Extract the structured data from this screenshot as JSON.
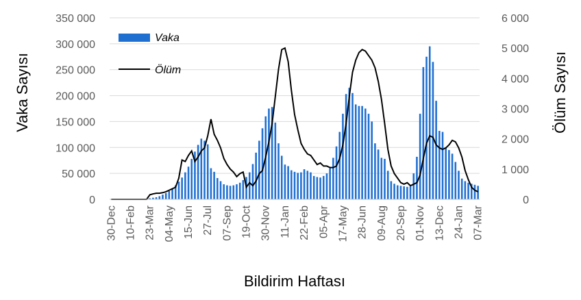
{
  "chart_data": {
    "type": "bar+line",
    "xlabel": "Bildirim Haftası",
    "ylabel_left": "Vaka Sayısı",
    "ylabel_right": "Ölüm Sayısı",
    "ylim_left": [
      0,
      350000
    ],
    "ylim_right": [
      0,
      6000
    ],
    "yticks_left": [
      "0",
      "50 000",
      "100 000",
      "150 000",
      "200 000",
      "250 000",
      "300 000",
      "350 000"
    ],
    "yticks_right": [
      "0",
      "1 000",
      "2 000",
      "3 000",
      "4 000",
      "5 000",
      "6 000"
    ],
    "xtick_labels": [
      "30-Dec",
      "10-Feb",
      "23-Mar",
      "04-May",
      "15-Jun",
      "27-Jul",
      "07-Sep",
      "19-Oct",
      "30-Nov",
      "11-Jan",
      "22-Feb",
      "05-Apr",
      "17-May",
      "28-Jun",
      "09-Aug",
      "20-Sep",
      "01-Nov",
      "13-Dec",
      "24-Jan",
      "07-Mar"
    ],
    "weeks": 115,
    "legend": {
      "placement": "top-left",
      "entries": [
        "Vaka",
        "Ölüm"
      ]
    },
    "colors": {
      "bar": "#1f6fd1",
      "line": "#000000"
    },
    "series": [
      {
        "name": "Vaka",
        "axis": "left",
        "type": "bar",
        "values": [
          0,
          0,
          0,
          0,
          0,
          0,
          0,
          0,
          0,
          0,
          0,
          0,
          2000,
          3000,
          4000,
          6000,
          9000,
          12000,
          16000,
          21000,
          27000,
          34000,
          42000,
          52000,
          63000,
          78000,
          92000,
          105000,
          117000,
          113000,
          106000,
          60000,
          53000,
          41000,
          35000,
          29000,
          27000,
          26000,
          27000,
          29000,
          32000,
          37000,
          43000,
          52000,
          68000,
          90000,
          113000,
          137000,
          160000,
          175000,
          178000,
          148000,
          108000,
          84000,
          67000,
          64000,
          56000,
          53000,
          51000,
          52000,
          58000,
          55000,
          52000,
          45000,
          43000,
          42000,
          45000,
          50000,
          60000,
          80000,
          102000,
          130000,
          165000,
          203000,
          215000,
          205000,
          183000,
          180000,
          180000,
          175000,
          165000,
          150000,
          108000,
          96000,
          80000,
          78000,
          55000,
          35000,
          30000,
          27000,
          26000,
          25000,
          24000,
          25000,
          50000,
          82000,
          165000,
          255000,
          275000,
          295000,
          265000,
          190000,
          132000,
          130000,
          100000,
          95000,
          88000,
          72000,
          55000,
          40000,
          35000,
          32000,
          30000,
          28000,
          26000
        ]
      },
      {
        "name": "Ölüm",
        "axis": "right",
        "type": "line",
        "values": [
          0,
          0,
          0,
          0,
          0,
          0,
          0,
          0,
          0,
          0,
          0,
          0,
          150,
          180,
          200,
          200,
          220,
          250,
          300,
          350,
          400,
          700,
          1300,
          1250,
          1450,
          1600,
          1250,
          1400,
          1600,
          1700,
          2100,
          2650,
          2150,
          1950,
          1700,
          1350,
          1150,
          1000,
          900,
          750,
          850,
          900,
          400,
          550,
          450,
          600,
          850,
          950,
          1400,
          1900,
          2500,
          3400,
          4300,
          4950,
          5000,
          4550,
          3600,
          2800,
          2300,
          1850,
          1650,
          1500,
          1450,
          1300,
          1150,
          1200,
          1100,
          1100,
          1050,
          1050,
          1100,
          1350,
          1800,
          2500,
          3400,
          4200,
          4600,
          4850,
          4950,
          4900,
          4750,
          4600,
          4350,
          3900,
          3300,
          2500,
          1650,
          1100,
          850,
          700,
          550,
          500,
          550,
          450,
          500,
          550,
          800,
          1350,
          1850,
          2100,
          2050,
          1800,
          1700,
          1650,
          1700,
          1800,
          1950,
          1900,
          1700,
          1400,
          950,
          650,
          400,
          300,
          250
        ]
      }
    ]
  }
}
